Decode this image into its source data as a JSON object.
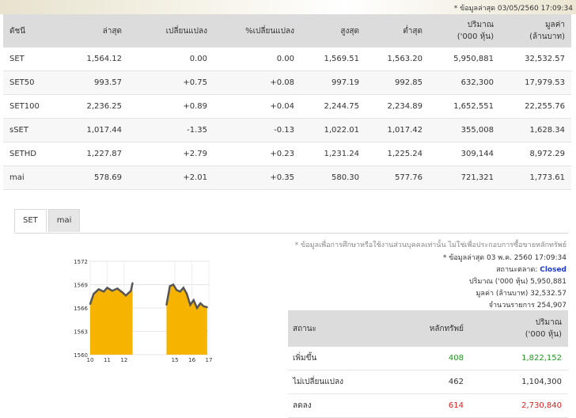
{
  "last_update_top": "* ข้อมูลล่าสุด 03/05/2560 17:09:34",
  "index_table": {
    "headers": [
      "ดัชนี",
      "ล่าสุด",
      "เปลี่ยนแปลง",
      "%เปลี่ยนแปลง",
      "สูงสุด",
      "ต่ำสุด",
      "ปริมาณ\n('000 หุ้น)",
      "มูลค่า\n(ล้านบาท)"
    ],
    "rows": [
      {
        "name": "SET",
        "last": "1,564.12",
        "chg": "0.00",
        "pchg": "0.00",
        "high": "1,569.51",
        "low": "1,563.20",
        "vol": "5,950,881",
        "val": "32,532.57",
        "dir": "neu",
        "link": false
      },
      {
        "name": "SET50",
        "last": "993.57",
        "chg": "+0.75",
        "pchg": "+0.08",
        "high": "997.19",
        "low": "992.85",
        "vol": "632,300",
        "val": "17,979.53",
        "dir": "pos",
        "link": true
      },
      {
        "name": "SET100",
        "last": "2,236.25",
        "chg": "+0.89",
        "pchg": "+0.04",
        "high": "2,244.75",
        "low": "2,234.89",
        "vol": "1,652,551",
        "val": "22,255.76",
        "dir": "pos",
        "link": true
      },
      {
        "name": "sSET",
        "last": "1,017.44",
        "chg": "-1.35",
        "pchg": "-0.13",
        "high": "1,022.01",
        "low": "1,017.42",
        "vol": "355,008",
        "val": "1,628.34",
        "dir": "neg",
        "link": true
      },
      {
        "name": "SETHD",
        "last": "1,227.87",
        "chg": "+2.79",
        "pchg": "+0.23",
        "high": "1,231.24",
        "low": "1,225.24",
        "vol": "309,144",
        "val": "8,972.29",
        "dir": "pos",
        "link": true
      },
      {
        "name": "mai",
        "last": "578.69",
        "chg": "+2.01",
        "pchg": "+0.35",
        "high": "580.30",
        "low": "577.76",
        "vol": "721,321",
        "val": "1,773.61",
        "dir": "pos",
        "link": false
      }
    ]
  },
  "tabs": [
    {
      "label": "SET",
      "active": true
    },
    {
      "label": "mai",
      "active": false
    }
  ],
  "chart_data": {
    "type": "area",
    "y_ticks": [
      "1572",
      "1569",
      "1566",
      "1563",
      "1560"
    ],
    "ylim": [
      1560,
      1572
    ],
    "x_ticks": [
      "10",
      "11",
      "12",
      "15",
      "16",
      "17"
    ],
    "xlim": [
      10,
      17
    ],
    "series": [
      {
        "name": "",
        "x": [
          10,
          10.2,
          10.5,
          10.8,
          11,
          11.3,
          11.6,
          11.9,
          12.1,
          12.4,
          12.5
        ],
        "y": [
          1566.5,
          1567.8,
          1568.4,
          1568.1,
          1568.6,
          1568.2,
          1568.5,
          1568.0,
          1567.6,
          1568.2,
          1569.2
        ],
        "color": "#f6b400"
      },
      {
        "name": "",
        "x": [
          14.5,
          14.7,
          14.9,
          15.1,
          15.3,
          15.5,
          15.7,
          15.9,
          16.1,
          16.3,
          16.5,
          16.7,
          16.9
        ],
        "y": [
          1566.4,
          1568.8,
          1569.0,
          1568.3,
          1568.1,
          1568.6,
          1567.8,
          1566.4,
          1567.0,
          1566.0,
          1566.6,
          1566.2,
          1566.1
        ],
        "color": "#f6b400"
      }
    ],
    "line_color": "#555555",
    "grid": true
  },
  "disclaimer": "* ข้อมูลเพื่อการศึกษาหรือใช้งานส่วนบุคคลเท่านั้น ไม่ใช่เพื่อประกอบการซื้อขายหลักทรัพย์",
  "last_update": "* ข้อมูลล่าสุด 03 พ.ค. 2560 17:09:34",
  "market_status_label": "สถานะตลาด:",
  "market_status": "Closed",
  "volume_line": "ปริมาณ ('000 หุ้น)  5,950,881",
  "value_line": "มูลค่า (ล้านบาท)  32,532.57",
  "trades_line": "จำนวนรายการ  254,907",
  "stat_table": {
    "headers": [
      "สถานะ",
      "หลักทรัพย์",
      "ปริมาณ\n('000 หุ้น)"
    ],
    "rows": [
      {
        "label": "เพิ่มขึ้น",
        "count": "408",
        "volume": "1,822,152",
        "dir": "pos"
      },
      {
        "label": "ไม่เปลี่ยนแปลง",
        "count": "462",
        "volume": "1,104,300",
        "dir": "neu"
      },
      {
        "label": "ลดลง",
        "count": "614",
        "volume": "2,730,840",
        "dir": "neg"
      }
    ]
  }
}
